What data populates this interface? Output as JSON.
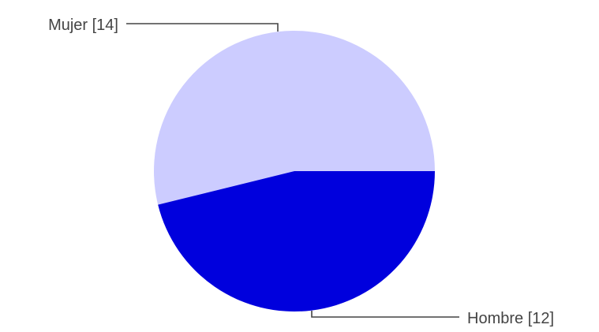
{
  "chart_data": {
    "type": "pie",
    "slices": [
      {
        "name": "Mujer",
        "value": 14,
        "label": "Mujer [14]",
        "color": "#ccccff"
      },
      {
        "name": "Hombre",
        "value": 12,
        "label": "Hombre [12]",
        "color": "#0000dd"
      }
    ],
    "legend": "none"
  }
}
